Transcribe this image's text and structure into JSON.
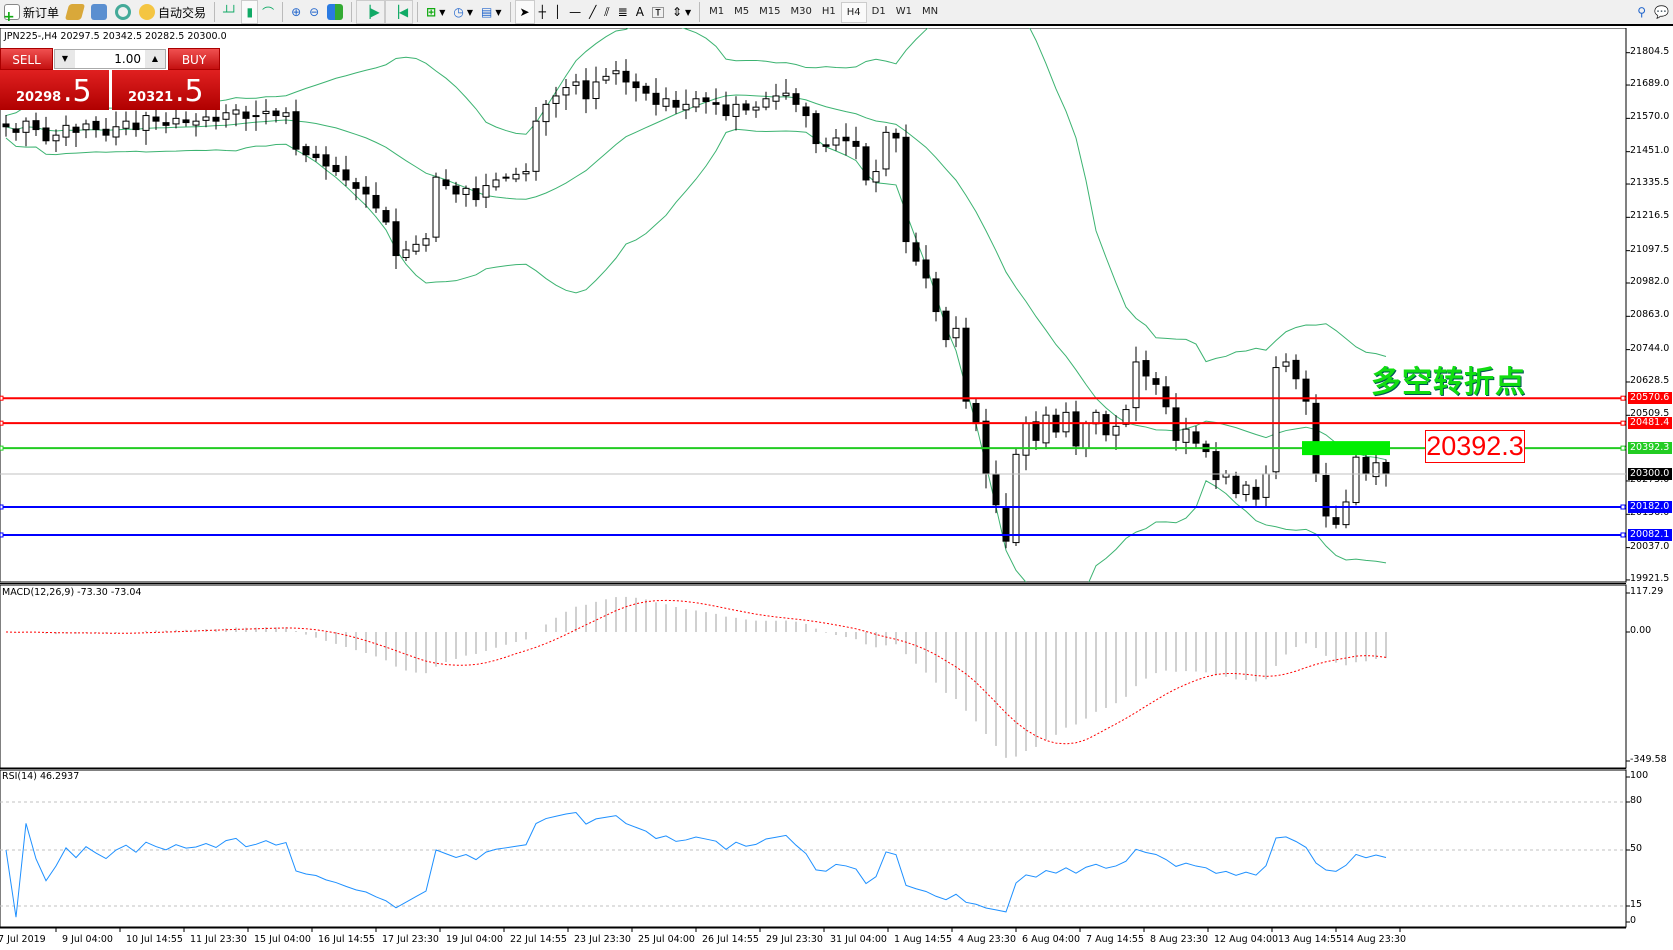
{
  "toolbar": {
    "new_order": "新订单",
    "auto_trading": "自动交易",
    "timeframes": [
      "M1",
      "M5",
      "M15",
      "M30",
      "H1",
      "H4",
      "D1",
      "W1",
      "MN"
    ],
    "active_timeframe": "H4"
  },
  "symbol_info": "JPN225-,H4  20297.5 20342.5 20282.5 20300.0",
  "trade_panel": {
    "sell_label": "SELL",
    "buy_label": "BUY",
    "lot": "1.00",
    "sell_big": "20298",
    "sell_small": ".5",
    "buy_big": "20321",
    "buy_small": ".5"
  },
  "price_axis": [
    "21804.5",
    "21689.0",
    "21570.0",
    "21451.0",
    "21335.5",
    "21216.5",
    "21097.5",
    "20982.0",
    "20863.0",
    "20744.0",
    "20628.5",
    "20509.5",
    "20275.0",
    "20156.0",
    "20037.0",
    "19921.5"
  ],
  "hlines": [
    {
      "price": 20570.6,
      "label": "20570.6",
      "color": "#ff0000"
    },
    {
      "price": 20481.4,
      "label": "20481.4",
      "color": "#ff0000"
    },
    {
      "price": 20392.3,
      "label": "20392.3",
      "color": "#22cc22"
    },
    {
      "price": 20182.0,
      "label": "20182.0",
      "color": "#0000ff"
    },
    {
      "price": 20082.1,
      "label": "20082.1",
      "color": "#0000ff"
    }
  ],
  "current_price": {
    "price": 20300.0,
    "label": "20300.0"
  },
  "annotation": {
    "text": "多空转折点",
    "level_text": "20392.3"
  },
  "macd": {
    "label": "MACD(12,26,9) -73.30 -73.04",
    "axis": [
      "117.29",
      "0.00",
      "-349.58"
    ],
    "max": 117.29,
    "min": -349.58
  },
  "rsi": {
    "label": "RSI(14) 46.2937",
    "axis": [
      "100",
      "80",
      "50",
      "15",
      "0"
    ]
  },
  "time_axis": [
    "7 Jul 2019",
    "9 Jul 04:00",
    "10 Jul 14:55",
    "11 Jul 23:30",
    "15 Jul 04:00",
    "16 Jul 14:55",
    "17 Jul 23:30",
    "19 Jul 04:00",
    "22 Jul 14:55",
    "23 Jul 23:30",
    "25 Jul 04:00",
    "26 Jul 14:55",
    "29 Jul 23:30",
    "31 Jul 04:00",
    "1 Aug 14:55",
    "4 Aug 23:30",
    "6 Aug 04:00",
    "7 Aug 14:55",
    "8 Aug 23:30",
    "12 Aug 04:00",
    "13 Aug 14:55",
    "14 Aug 23:30"
  ],
  "chart_data": {
    "type": "candlestick",
    "symbol": "JPN225-",
    "timeframe": "H4",
    "ylim": [
      19921.5,
      21804.5
    ],
    "closes": [
      21540,
      21520,
      21560,
      21530,
      21490,
      21510,
      21545,
      21520,
      21550,
      21530,
      21510,
      21540,
      21560,
      21530,
      21580,
      21560,
      21545,
      21570,
      21555,
      21560,
      21575,
      21560,
      21590,
      21600,
      21570,
      21580,
      21595,
      21580,
      21590,
      21460,
      21440,
      21430,
      21400,
      21380,
      21350,
      21320,
      21300,
      21250,
      21200,
      21080,
      21100,
      21120,
      21140,
      21360,
      21330,
      21300,
      21320,
      21280,
      21330,
      21350,
      21360,
      21370,
      21380,
      21560,
      21620,
      21650,
      21680,
      21700,
      21640,
      21700,
      21720,
      21740,
      21700,
      21680,
      21660,
      21620,
      21640,
      21610,
      21620,
      21640,
      21630,
      21620,
      21580,
      21620,
      21600,
      21610,
      21640,
      21650,
      21660,
      21620,
      21580,
      21480,
      21470,
      21500,
      21490,
      21470,
      21350,
      21380,
      21520,
      21500,
      21130,
      21060,
      21000,
      20880,
      20780,
      20820,
      20560,
      20480,
      20300,
      20190,
      20060,
      20370,
      20480,
      20420,
      20510,
      20450,
      20520,
      20400,
      20480,
      20520,
      20440,
      20470,
      20530,
      20700,
      20650,
      20620,
      20540,
      20420,
      20460,
      20410,
      20380,
      20280,
      20300,
      20230,
      20260,
      20210,
      20300,
      20680,
      20700,
      20640,
      20560,
      20300,
      20150,
      20120,
      20200,
      20360,
      20300,
      20340,
      20300
    ],
    "indicators": [
      "Bollinger Bands(20,2)",
      "MACD(12,26,9)",
      "RSI(14)"
    ],
    "colors": {
      "bands": "#3cb371",
      "macd_hist": "#c0c0c0",
      "macd_signal": "#ff0000",
      "rsi": "#1e90ff"
    }
  }
}
